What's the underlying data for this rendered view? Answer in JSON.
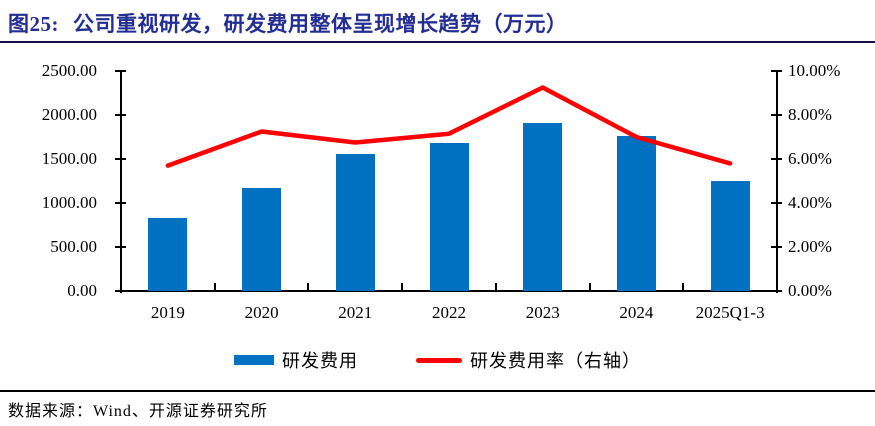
{
  "title": {
    "prefix": "图25:",
    "text": "公司重视研发，研发费用整体呈现增长趋势（万元）"
  },
  "legend": {
    "items": [
      {
        "label": "研发费用",
        "type": "bar",
        "color": "#0070C0"
      },
      {
        "label": "研发费用率（右轴）",
        "type": "line",
        "color": "#FF0000"
      }
    ]
  },
  "source": {
    "text": "数据来源：Wind、开源证券研究所"
  },
  "colors": {
    "bar": "#0070C0",
    "line": "#FF0000",
    "title": "#232E92",
    "axis": "#000000"
  },
  "chart_data": {
    "type": "bar",
    "subtype": "bar+line combo, dual axis",
    "title": "公司重视研发，研发费用整体呈现增长趋势（万元）",
    "categories": [
      "2019",
      "2020",
      "2021",
      "2022",
      "2023",
      "2024",
      "2025Q1-3"
    ],
    "series": [
      {
        "name": "研发费用",
        "type": "bar",
        "axis": "left",
        "color": "#0070C0",
        "values": [
          835,
          1165,
          1555,
          1685,
          1910,
          1765,
          1245
        ]
      },
      {
        "name": "研发费用率（右轴）",
        "type": "line",
        "axis": "right",
        "color": "#FF0000",
        "values": [
          5.7,
          7.25,
          6.75,
          7.15,
          9.25,
          7.0,
          5.8
        ]
      }
    ],
    "left_axis": {
      "min": 0,
      "max": 2500,
      "step": 500,
      "labels": [
        "0.00",
        "500.00",
        "1000.00",
        "1500.00",
        "2000.00",
        "2500.00"
      ]
    },
    "right_axis": {
      "min": 0,
      "max": 10,
      "step": 2,
      "labels": [
        "0.00%",
        "2.00%",
        "4.00%",
        "6.00%",
        "8.00%",
        "10.00%"
      ]
    },
    "grid": false,
    "legend_position": "bottom"
  }
}
